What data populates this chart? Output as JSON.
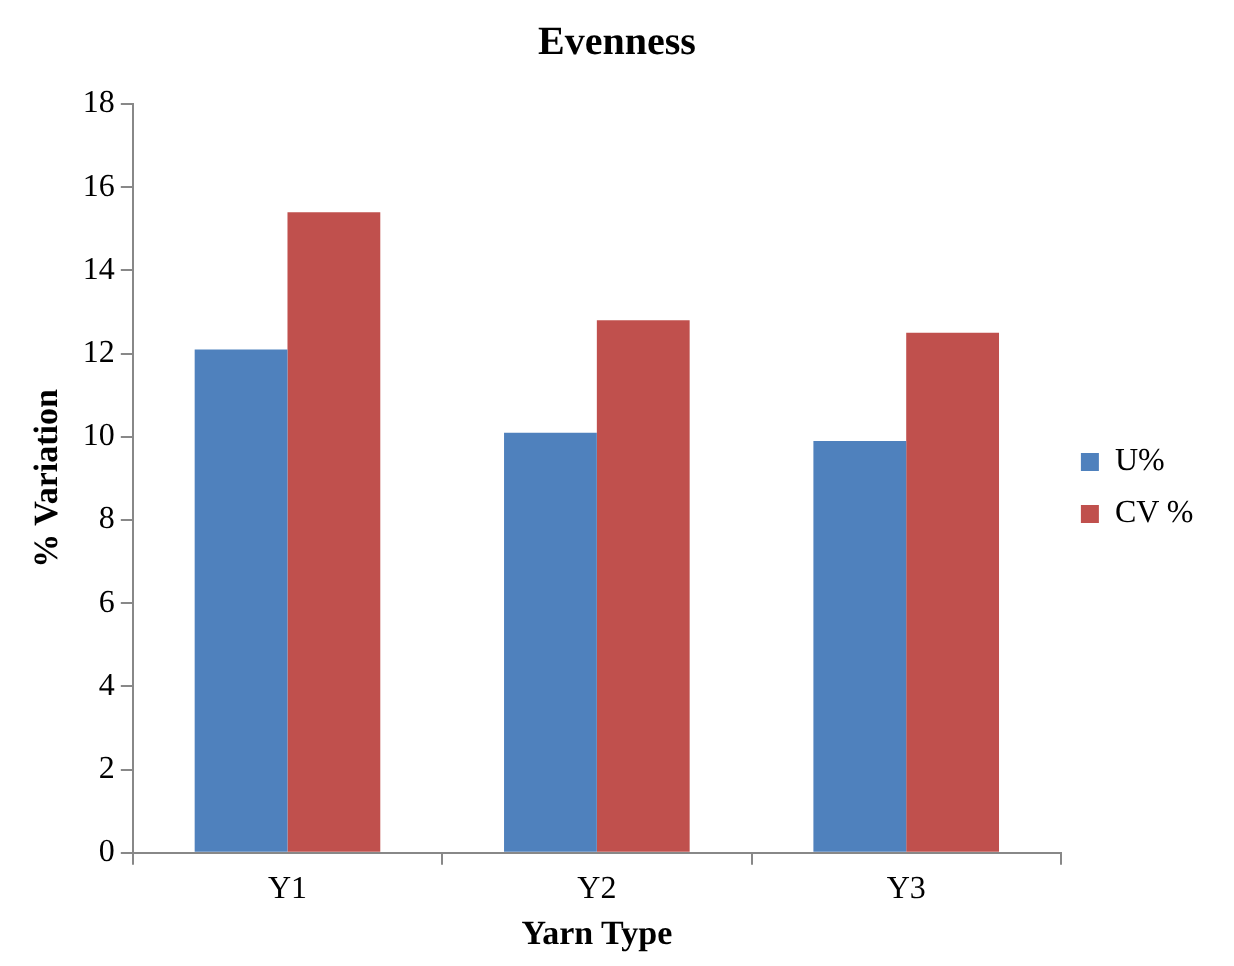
{
  "chart_data": {
    "type": "bar",
    "title": "Evenness",
    "xlabel": "Yarn Type",
    "ylabel": "% Variation",
    "categories": [
      "Y1",
      "Y2",
      "Y3"
    ],
    "series": [
      {
        "name": "U%",
        "color": "#4f81bd",
        "values": [
          12.1,
          10.1,
          9.9
        ]
      },
      {
        "name": "CV %",
        "color": "#c0504d",
        "values": [
          15.4,
          12.8,
          12.5
        ]
      }
    ],
    "ylim": [
      0,
      18
    ],
    "yticks": [
      0,
      2,
      4,
      6,
      8,
      10,
      12,
      14,
      16,
      18
    ],
    "grid": false,
    "legend": "right"
  }
}
